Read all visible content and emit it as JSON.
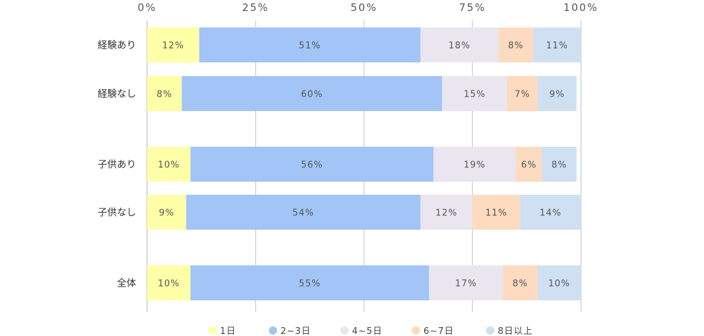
{
  "chart_data": {
    "type": "bar",
    "orientation": "horizontal",
    "stacked": true,
    "percent_scale": true,
    "xlim": [
      0,
      100
    ],
    "x_ticks": [
      "0%",
      "25%",
      "50%",
      "75%",
      "100%"
    ],
    "x_tick_values": [
      0,
      25,
      50,
      75,
      100
    ],
    "grid": true,
    "legend_position": "bottom",
    "categories": [
      "経験あり",
      "経験なし",
      "子供あり",
      "子供なし",
      "全体"
    ],
    "series": [
      {
        "name": "1日",
        "color": "#ffffa8",
        "values": [
          12,
          8,
          10,
          9,
          10
        ]
      },
      {
        "name": "2~3日",
        "color": "#a2c4f6",
        "values": [
          51,
          60,
          56,
          54,
          55
        ]
      },
      {
        "name": "4~5日",
        "color": "#e9e6ef",
        "values": [
          18,
          15,
          19,
          12,
          17
        ]
      },
      {
        "name": "6~7日",
        "color": "#fcdbc0",
        "values": [
          8,
          7,
          6,
          11,
          8
        ]
      },
      {
        "name": "8日以上",
        "color": "#cfe0f3",
        "values": [
          11,
          9,
          8,
          14,
          10
        ]
      }
    ],
    "value_labels": [
      [
        "12%",
        "51%",
        "18%",
        "8%",
        "11%"
      ],
      [
        "8%",
        "60%",
        "15%",
        "7%",
        "9%"
      ],
      [
        "10%",
        "56%",
        "19%",
        "6%",
        "8%"
      ],
      [
        "9%",
        "54%",
        "12%",
        "11%",
        "14%"
      ],
      [
        "10%",
        "55%",
        "17%",
        "8%",
        "10%"
      ]
    ]
  }
}
